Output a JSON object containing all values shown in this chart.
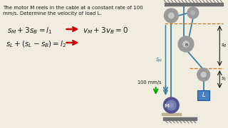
{
  "bg_color": "#f0ece0",
  "text_color": "#1a1a1a",
  "problem_text_line1": "The motor M reels in the cable at a constant rate of 100",
  "problem_text_line2": "mm/s. Determine the velocity of load L.",
  "eq1_left": "$s_M +3s_B = l_1$",
  "eq2_left": "$s_L + (s_L - s_B) = l_2$",
  "eq1_right": "$v_M + 3v_B = 0$",
  "arrow_color": "#cc0000",
  "label_100": "100 mm/s",
  "pulley_color": "#9a9a9a",
  "pulley_inner": "#c8c8c8",
  "rope_color": "#3a7fa0",
  "ceiling_color": "#707070",
  "orange_color": "#c87820",
  "green_arrow": "#00aa00",
  "s_M_label": "$s_M$",
  "s_B_label": "$s_B$",
  "s_1_label": "$s_1$",
  "B_label": "B",
  "M_label": "M",
  "L_label": "L",
  "motor_outer": "#505090",
  "motor_inner": "#7080b0",
  "load_fill": "#4a80c0",
  "load_edge": "#2050a0"
}
